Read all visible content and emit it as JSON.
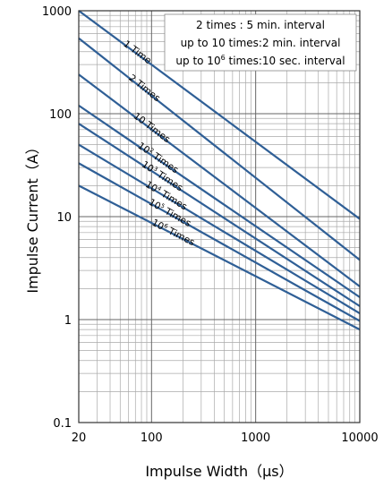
{
  "chart_data": {
    "type": "line",
    "title": "",
    "xlabel": "Impulse Width（μs）",
    "ylabel": "Impulse Current（A）",
    "x_scale": "log",
    "y_scale": "log",
    "xlim": [
      20,
      10000
    ],
    "ylim": [
      0.1,
      1000
    ],
    "grid": true,
    "x_ticks": [
      "20",
      "100",
      "1000",
      "10000"
    ],
    "y_ticks": [
      "1000",
      "100",
      "10",
      "1",
      "0.1"
    ],
    "legend": {
      "placement": "top-right",
      "lines": [
        {
          "pre": "2 times : 5 min. interval",
          "sup": "",
          "post": ""
        },
        {
          "pre": "up to 10 times:2 min. interval",
          "sup": "",
          "post": ""
        },
        {
          "pre": "up to 10",
          "sup": "6",
          "post": " times:10 sec. interval"
        }
      ]
    },
    "series": [
      {
        "name": "1 Time",
        "label_base": "1 Time",
        "label_sup": "",
        "label_post": "",
        "color": "#2f5f96",
        "x": [
          20,
          10000
        ],
        "y": [
          1000,
          9.5
        ]
      },
      {
        "name": "2 Times",
        "label_base": "2 Times",
        "label_sup": "",
        "label_post": "",
        "color": "#2f5f96",
        "x": [
          20,
          10000
        ],
        "y": [
          540,
          3.8
        ]
      },
      {
        "name": "10 Times",
        "label_base": "10 Times",
        "label_sup": "",
        "label_post": "",
        "color": "#2f5f96",
        "x": [
          20,
          10000
        ],
        "y": [
          240,
          2.1
        ]
      },
      {
        "name": "10² Times",
        "label_base": "10",
        "label_sup": "2",
        "label_post": " Times",
        "color": "#2f5f96",
        "x": [
          20,
          10000
        ],
        "y": [
          120,
          1.65
        ]
      },
      {
        "name": "10³ Times",
        "label_base": "10",
        "label_sup": "3",
        "label_post": " Times",
        "color": "#2f5f96",
        "x": [
          20,
          10000
        ],
        "y": [
          80,
          1.35
        ]
      },
      {
        "name": "10⁴ Times",
        "label_base": "10",
        "label_sup": "4",
        "label_post": " Times",
        "color": "#2f5f96",
        "x": [
          20,
          10000
        ],
        "y": [
          50,
          1.15
        ]
      },
      {
        "name": "10⁵ Times",
        "label_base": "10",
        "label_sup": "5",
        "label_post": " Times",
        "color": "#2f5f96",
        "x": [
          20,
          10000
        ],
        "y": [
          33,
          0.97
        ]
      },
      {
        "name": "10⁶ Times",
        "label_base": "10",
        "label_sup": "6",
        "label_post": " Times",
        "color": "#2f5f96",
        "x": [
          20,
          10000
        ],
        "y": [
          20,
          0.8
        ]
      }
    ]
  }
}
